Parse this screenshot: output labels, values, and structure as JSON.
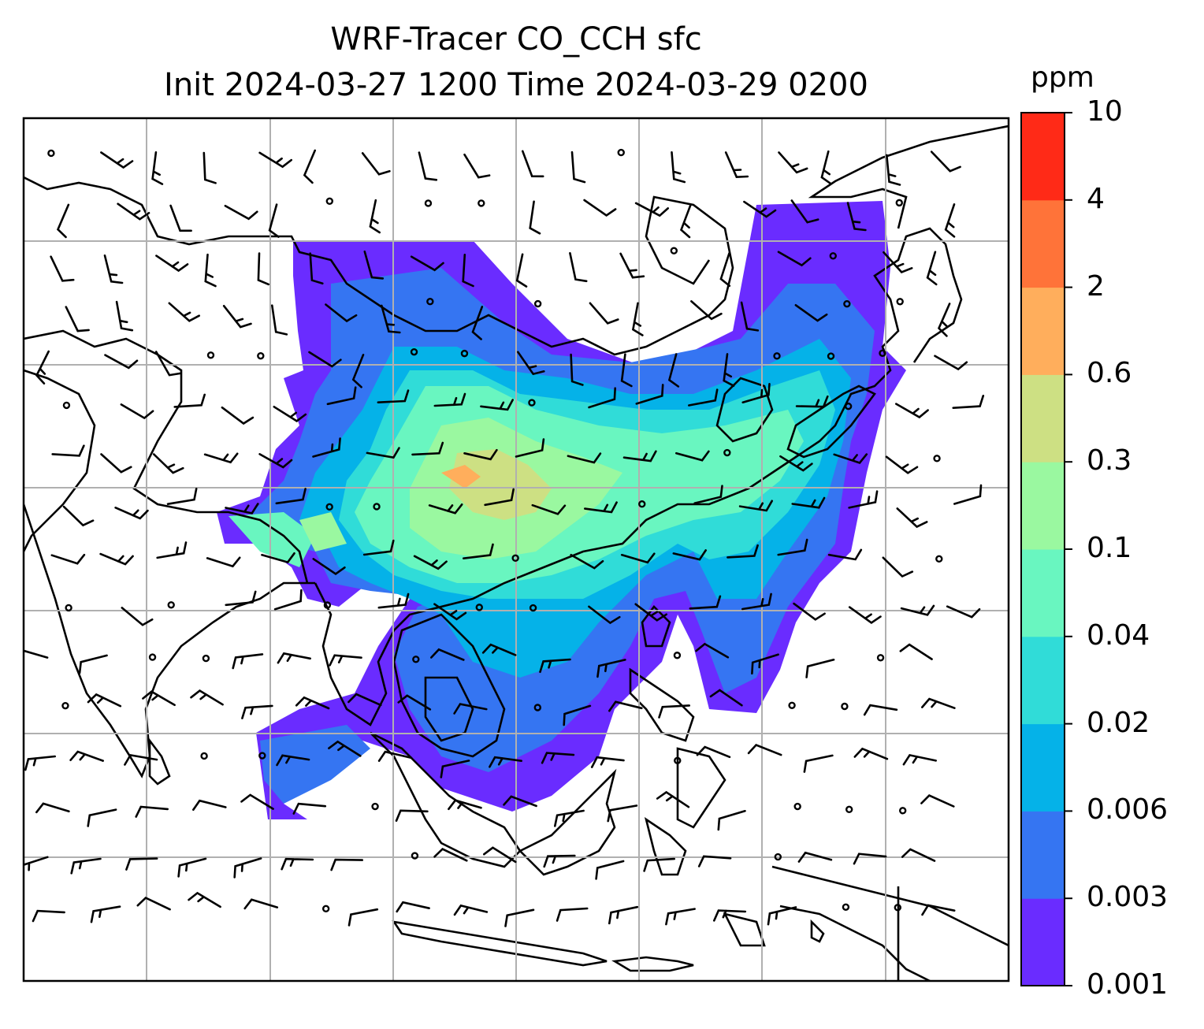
{
  "chart_data": {
    "type": "heatmap",
    "title": "WRF-Tracer CO_CCH sfc",
    "subtitle": "Init 2024-03-27 1200 Time 2024-03-29 0200",
    "colorbar": {
      "units": "ppm",
      "levels": [
        "0.001",
        "0.003",
        "0.006",
        "0.02",
        "0.04",
        "0.1",
        "0.3",
        "0.6",
        "2",
        "4",
        "10"
      ],
      "colors": [
        "#6a2cff",
        "#3575f2",
        "#05b2e8",
        "#30dcd8",
        "#69f6c0",
        "#9af8a0",
        "#cde083",
        "#ffae5c",
        "#ff7339",
        "#ff2a17"
      ]
    },
    "grid": true,
    "overlay": "wind barbs"
  }
}
